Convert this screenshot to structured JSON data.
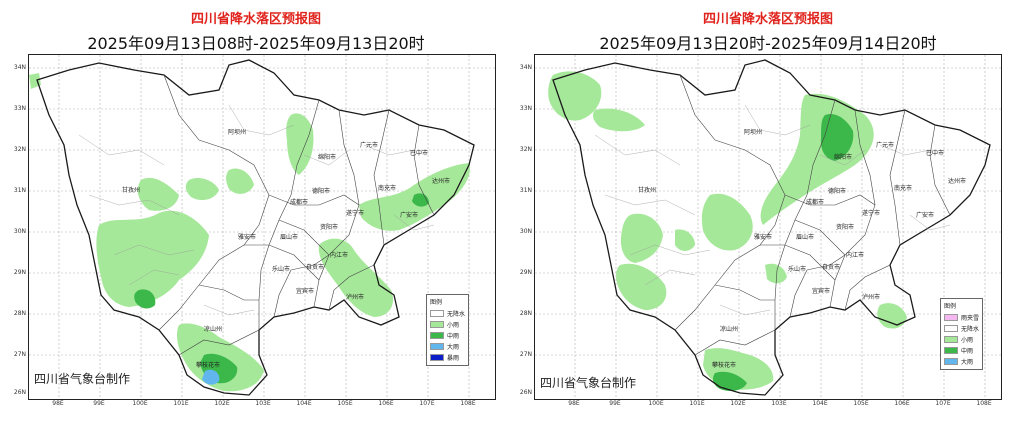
{
  "colors": {
    "no_rain": "#ffffff",
    "light_rain": "#a6e89a",
    "moderate_rain": "#3cb84a",
    "heavy_rain": "#62b6ee",
    "rainstorm": "#0c1ec8",
    "rain_snow": "#f2b8ef",
    "boundary": "#1a1a1a",
    "grid": "#b0b0b0"
  },
  "lat_labels": [
    "34N",
    "33N",
    "32N",
    "31N",
    "30N",
    "29N",
    "28N",
    "27N",
    "26N"
  ],
  "lon_labels": [
    "98E",
    "99E",
    "100E",
    "101E",
    "102E",
    "103E",
    "104E",
    "105E",
    "106E",
    "107E",
    "108E"
  ],
  "city_labels": [
    "甘孜州",
    "阿坝州",
    "绵阳市",
    "广元市",
    "巴中市",
    "达州市",
    "南充市",
    "德阳市",
    "成都市",
    "遂宁市",
    "广安市",
    "资阳市",
    "眉山市",
    "雅安市",
    "乐山市",
    "内江市",
    "自贡市",
    "宜宾市",
    "泸州市",
    "凉山州",
    "攀枝花市"
  ],
  "credit": "四川省气象台制作",
  "panels": [
    {
      "title": "四川省降水落区预报图",
      "subtitle": "2025年09月13日08时-2025年09月13日20时",
      "legend": {
        "title": "图例",
        "items": [
          {
            "label": "无降水",
            "color": "#ffffff"
          },
          {
            "label": "小雨",
            "color": "#a6e89a"
          },
          {
            "label": "中雨",
            "color": "#3cb84a"
          },
          {
            "label": "大雨",
            "color": "#62b6ee"
          },
          {
            "label": "暴雨",
            "color": "#0c1ec8"
          }
        ]
      }
    },
    {
      "title": "四川省降水落区预报图",
      "subtitle": "2025年09月13日20时-2025年09月14日20时",
      "legend": {
        "title": "图例",
        "items": [
          {
            "label": "雨夹雪",
            "color": "#f2b8ef"
          },
          {
            "label": "无降水",
            "color": "#ffffff"
          },
          {
            "label": "小雨",
            "color": "#a6e89a"
          },
          {
            "label": "中雨",
            "color": "#3cb84a"
          },
          {
            "label": "大雨",
            "color": "#62b6ee"
          }
        ]
      }
    }
  ]
}
